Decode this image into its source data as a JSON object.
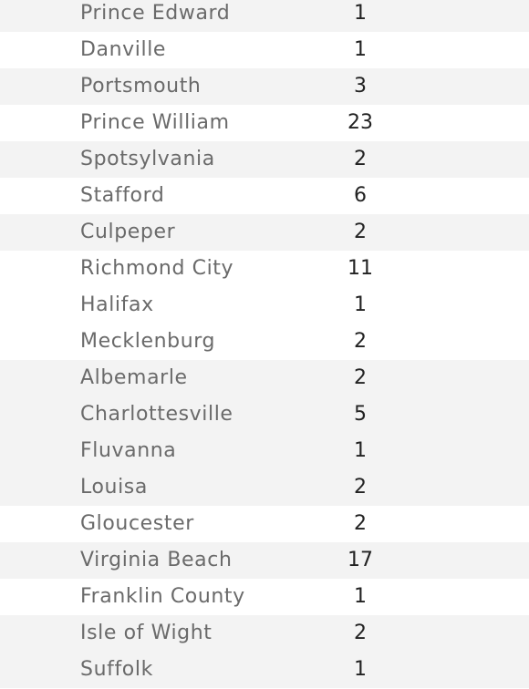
{
  "table": {
    "rows": [
      {
        "name": "Prince Edward",
        "count": "1"
      },
      {
        "name": "Danville",
        "count": "1"
      },
      {
        "name": "Portsmouth",
        "count": "3"
      },
      {
        "name": "Prince William",
        "count": "23"
      },
      {
        "name": "Spotsylvania",
        "count": "2"
      },
      {
        "name": "Stafford",
        "count": "6"
      },
      {
        "name": "Culpeper",
        "count": "2"
      },
      {
        "name": "Richmond City",
        "count": "11"
      },
      {
        "name": "Halifax",
        "count": "1"
      },
      {
        "name": "Mecklenburg",
        "count": "2"
      },
      {
        "name": "Albemarle",
        "count": "2"
      },
      {
        "name": "Charlottesville",
        "count": "5"
      },
      {
        "name": "Fluvanna",
        "count": "1"
      },
      {
        "name": "Louisa",
        "count": "2"
      },
      {
        "name": "Gloucester",
        "count": "2"
      },
      {
        "name": "Virginia Beach",
        "count": "17"
      },
      {
        "name": "Franklin County",
        "count": "1"
      },
      {
        "name": "Isle of Wight",
        "count": "2"
      },
      {
        "name": "Suffolk",
        "count": "1"
      }
    ]
  },
  "colors": {
    "shaded_row": "#f3f3f3",
    "white_row": "#ffffff",
    "name_text": "#6a6a6a",
    "count_text": "#222222"
  }
}
